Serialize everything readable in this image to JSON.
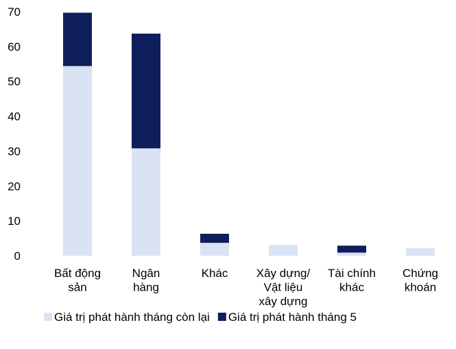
{
  "chart_data": {
    "type": "stacked_bar",
    "categories": [
      "Bất động\nsản",
      "Ngân\nhàng",
      "Khác",
      "Xây dựng/\nVật liệu\nxây dựng",
      "Tài chính\nkhác",
      "Chứng\nkhoán"
    ],
    "series": [
      {
        "name": "Giá trị phát hành tháng còn lại",
        "color": "#dae3f3",
        "values": [
          54.4,
          30.8,
          3.7,
          3.1,
          0.9,
          2.2
        ]
      },
      {
        "name": "Giá trị phát hành tháng 5",
        "color": "#0e1f5b",
        "values": [
          15.3,
          32.9,
          2.6,
          0,
          2.0,
          0
        ]
      }
    ],
    "ylim": [
      0,
      70
    ],
    "yticks": [
      0,
      10,
      20,
      30,
      40,
      50,
      60,
      70
    ],
    "grid": false,
    "legend": "bottom"
  }
}
